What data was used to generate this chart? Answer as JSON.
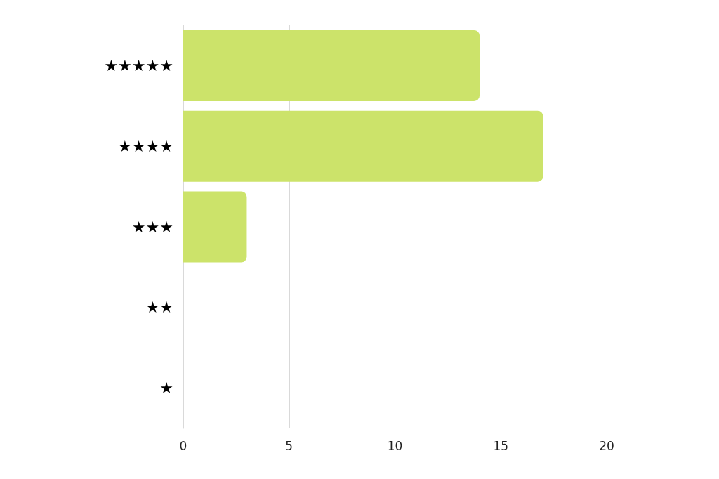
{
  "chart_data": {
    "type": "bar",
    "orientation": "horizontal",
    "categories": [
      "★★★★★",
      "★★★★",
      "★★★",
      "★★",
      "★"
    ],
    "values": [
      14,
      17,
      3,
      0,
      0
    ],
    "color": "#cce36a",
    "xlim": [
      0,
      20
    ],
    "xticks": [
      0,
      5,
      10,
      15,
      20
    ],
    "grid": "x"
  }
}
